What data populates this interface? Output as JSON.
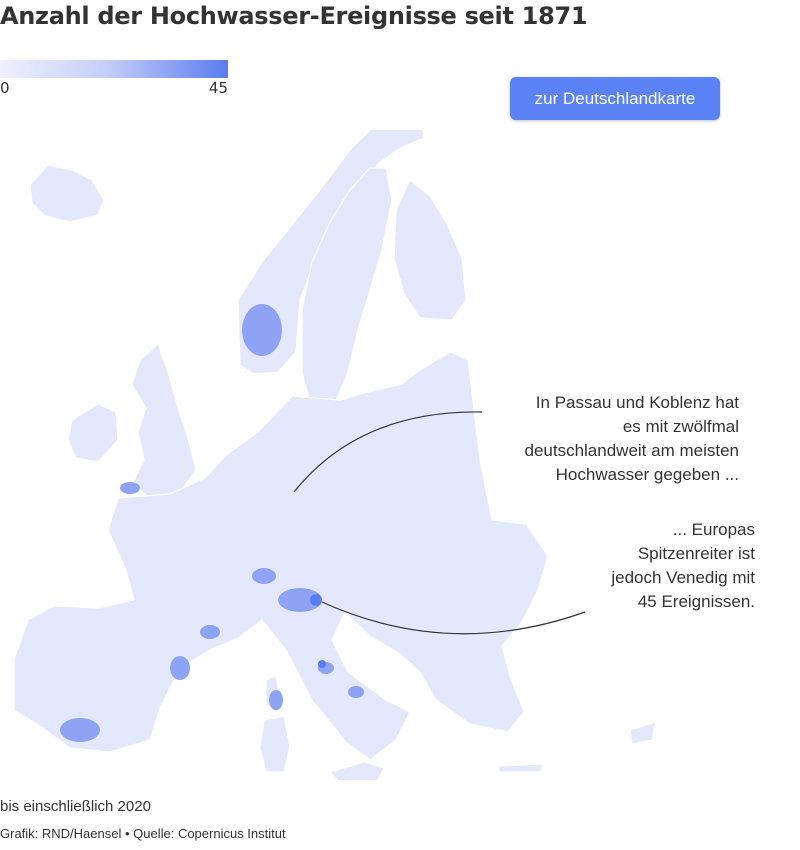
{
  "title": "Anzahl der Hochwasser-Ereignisse seit 1871",
  "legend": {
    "min": "0",
    "max": "45",
    "color_low": "#eef0fd",
    "color_high": "#5a7cf1"
  },
  "button": {
    "label": "zur Deutschlandkarte"
  },
  "annotations": [
    {
      "lines": [
        "In Passau und Koblenz hat",
        "es mit zwölfmal",
        "deutschlandweit am meisten",
        "Hochwasser gegeben ..."
      ]
    },
    {
      "lines": [
        "... Europas",
        "Spitzenreiter ist",
        "jedoch Venedig mit",
        "45 Ereignissen."
      ]
    }
  ],
  "footer": {
    "note": "bis einschließlich 2020",
    "credit": "Grafik: RND/Haensel • Quelle: Copernicus Institut"
  }
}
